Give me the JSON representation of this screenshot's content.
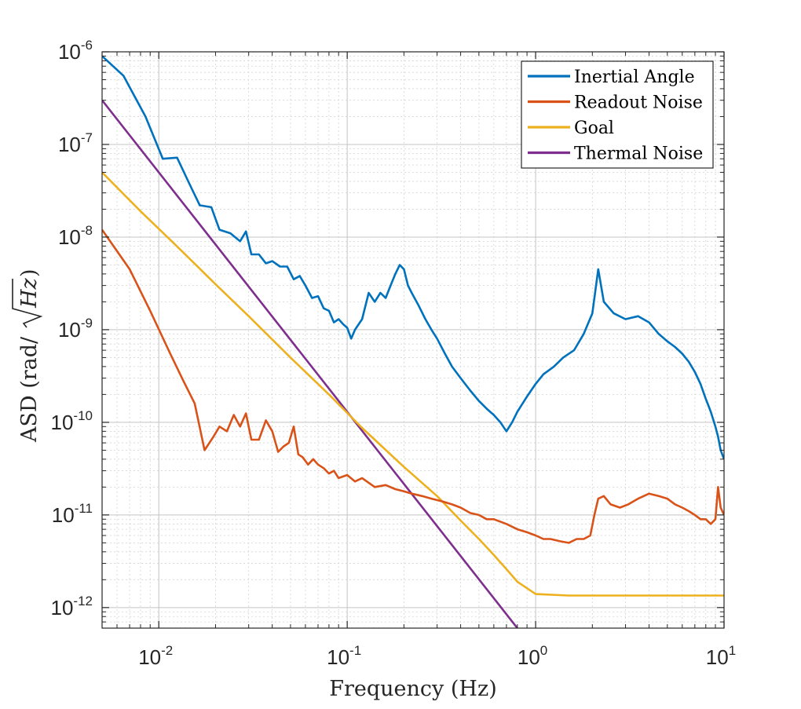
{
  "chart_data": {
    "type": "line",
    "title": "",
    "xlabel": "Frequency (Hz)",
    "ylabel_prefix": "ASD (rad/",
    "ylabel_radicand": "Hz",
    "ylabel_suffix": ")",
    "xscale": "log",
    "yscale": "log",
    "xlim": [
      0.005,
      10
    ],
    "ylim": [
      6e-13,
      1e-06
    ],
    "grid": true,
    "minor_grid": true,
    "legend_position": "top-right",
    "x_ticks": [
      {
        "base": "10",
        "exp": "-2",
        "value": 0.01
      },
      {
        "base": "10",
        "exp": "-1",
        "value": 0.1
      },
      {
        "base": "10",
        "exp": "0",
        "value": 1
      },
      {
        "base": "10",
        "exp": "1",
        "value": 10
      }
    ],
    "y_ticks": [
      {
        "base": "10",
        "exp": "-6",
        "value": 1e-06
      },
      {
        "base": "10",
        "exp": "-7",
        "value": 1e-07
      },
      {
        "base": "10",
        "exp": "-8",
        "value": 1e-08
      },
      {
        "base": "10",
        "exp": "-9",
        "value": 1e-09
      },
      {
        "base": "10",
        "exp": "-10",
        "value": 1e-10
      },
      {
        "base": "10",
        "exp": "-11",
        "value": 1e-11
      },
      {
        "base": "10",
        "exp": "-12",
        "value": 1e-12
      }
    ],
    "series": [
      {
        "name": "Inertial Angle",
        "color": "#0072BD",
        "x": [
          0.005,
          0.0065,
          0.0085,
          0.0105,
          0.0125,
          0.0145,
          0.0165,
          0.019,
          0.021,
          0.024,
          0.027,
          0.029,
          0.031,
          0.034,
          0.037,
          0.04,
          0.044,
          0.048,
          0.052,
          0.056,
          0.06,
          0.065,
          0.07,
          0.075,
          0.08,
          0.085,
          0.09,
          0.095,
          0.1,
          0.105,
          0.11,
          0.12,
          0.13,
          0.14,
          0.15,
          0.16,
          0.17,
          0.18,
          0.19,
          0.2,
          0.21,
          0.22,
          0.24,
          0.26,
          0.28,
          0.3,
          0.33,
          0.36,
          0.4,
          0.45,
          0.5,
          0.55,
          0.6,
          0.65,
          0.7,
          0.75,
          0.8,
          0.9,
          1.0,
          1.1,
          1.25,
          1.4,
          1.6,
          1.8,
          2.0,
          2.15,
          2.3,
          2.6,
          3.0,
          3.5,
          4.0,
          4.5,
          5.0,
          5.5,
          6.0,
          6.5,
          7.0,
          7.5,
          8.0,
          8.5,
          9.0,
          9.3,
          9.6,
          10.0
        ],
        "y": [
          9e-07,
          5.5e-07,
          2e-07,
          7e-08,
          7.2e-08,
          3.8e-08,
          2.2e-08,
          2.1e-08,
          1.2e-08,
          1.1e-08,
          9e-09,
          1.15e-08,
          6.5e-09,
          6.5e-09,
          5.2e-09,
          5.5e-09,
          4.8e-09,
          4.8e-09,
          3.5e-09,
          3.8e-09,
          3e-09,
          2.2e-09,
          2.3e-09,
          1.7e-09,
          1.6e-09,
          1.2e-09,
          1.3e-09,
          1.15e-09,
          1.05e-09,
          8e-10,
          1e-09,
          1.3e-09,
          2.5e-09,
          2e-09,
          2.5e-09,
          2.2e-09,
          3e-09,
          4e-09,
          5e-09,
          4.5e-09,
          3e-09,
          2.5e-09,
          1.8e-09,
          1.3e-09,
          1e-09,
          8e-10,
          5.5e-10,
          4e-10,
          3e-10,
          2.2e-10,
          1.7e-10,
          1.4e-10,
          1.2e-10,
          1e-10,
          8e-11,
          1e-10,
          1.3e-10,
          1.9e-10,
          2.6e-10,
          3.3e-10,
          4e-10,
          5e-10,
          6e-10,
          9e-10,
          1.5e-09,
          4.5e-09,
          2e-09,
          1.5e-09,
          1.3e-09,
          1.4e-09,
          1.2e-09,
          9e-10,
          7.5e-10,
          6.5e-10,
          5.5e-10,
          4.5e-10,
          3.5e-10,
          2.6e-10,
          1.8e-10,
          1.3e-10,
          9e-11,
          7e-11,
          5e-11,
          4e-11
        ]
      },
      {
        "name": "Readout Noise",
        "color": "#D95319",
        "x": [
          0.005,
          0.007,
          0.009,
          0.0115,
          0.0135,
          0.0155,
          0.0175,
          0.0195,
          0.021,
          0.023,
          0.025,
          0.027,
          0.029,
          0.031,
          0.034,
          0.037,
          0.04,
          0.043,
          0.046,
          0.049,
          0.052,
          0.055,
          0.058,
          0.062,
          0.066,
          0.07,
          0.075,
          0.08,
          0.085,
          0.09,
          0.1,
          0.11,
          0.12,
          0.14,
          0.16,
          0.18,
          0.2,
          0.22,
          0.25,
          0.28,
          0.32,
          0.36,
          0.4,
          0.45,
          0.5,
          0.55,
          0.6,
          0.7,
          0.8,
          0.9,
          1.0,
          1.1,
          1.2,
          1.35,
          1.5,
          1.65,
          1.8,
          1.95,
          2.05,
          2.15,
          2.3,
          2.5,
          2.8,
          3.1,
          3.5,
          4.0,
          4.5,
          5.0,
          5.5,
          6.0,
          6.5,
          7.0,
          7.5,
          8.0,
          8.5,
          9.0,
          9.3,
          9.6,
          10.0
        ],
        "y": [
          1.2e-08,
          4.5e-09,
          1.6e-09,
          5.5e-10,
          2.8e-10,
          1.6e-10,
          5e-11,
          7e-11,
          9e-11,
          8e-11,
          1.2e-10,
          9e-11,
          1.25e-10,
          6.5e-11,
          6.5e-11,
          1.05e-10,
          8e-11,
          4.8e-11,
          5.5e-11,
          6e-11,
          9e-11,
          4.5e-11,
          4.2e-11,
          3.5e-11,
          4e-11,
          3.5e-11,
          3.2e-11,
          2.8e-11,
          3e-11,
          2.5e-11,
          2.7e-11,
          2.3e-11,
          2.5e-11,
          2e-11,
          2.1e-11,
          1.9e-11,
          1.8e-11,
          1.7e-11,
          1.6e-11,
          1.5e-11,
          1.4e-11,
          1.3e-11,
          1.2e-11,
          1.05e-11,
          1e-11,
          9e-12,
          9e-12,
          8e-12,
          7e-12,
          6.5e-12,
          6e-12,
          5.5e-12,
          5.5e-12,
          5.2e-12,
          5e-12,
          5.5e-12,
          5.5e-12,
          6e-12,
          1e-11,
          1.5e-11,
          1.6e-11,
          1.3e-11,
          1.2e-11,
          1.3e-11,
          1.5e-11,
          1.7e-11,
          1.6e-11,
          1.5e-11,
          1.3e-11,
          1.2e-11,
          1.1e-11,
          1e-11,
          9e-12,
          9e-12,
          8e-12,
          9e-12,
          2e-11,
          1.2e-11,
          1e-11
        ]
      },
      {
        "name": "Goal",
        "color": "#EDB120",
        "x": [
          0.005,
          0.008,
          0.012,
          0.02,
          0.03,
          0.05,
          0.08,
          0.12,
          0.2,
          0.3,
          0.4,
          0.5,
          0.6,
          0.7,
          0.8,
          1.0,
          1.5,
          2.0,
          3.0,
          5.0,
          10.0
        ],
        "y": [
          5e-08,
          1.9e-08,
          8.6e-09,
          3.1e-09,
          1.4e-09,
          5e-10,
          2e-10,
          8.7e-11,
          3.3e-11,
          1.6e-11,
          8.7e-12,
          5.5e-12,
          3.7e-12,
          2.6e-12,
          1.9e-12,
          1.4e-12,
          1.35e-12,
          1.35e-12,
          1.35e-12,
          1.35e-12,
          1.35e-12
        ]
      },
      {
        "name": "Thermal Noise",
        "color": "#7E2F8E",
        "x": [
          0.005,
          0.8
        ],
        "y": [
          3e-07,
          6e-13
        ]
      }
    ]
  }
}
